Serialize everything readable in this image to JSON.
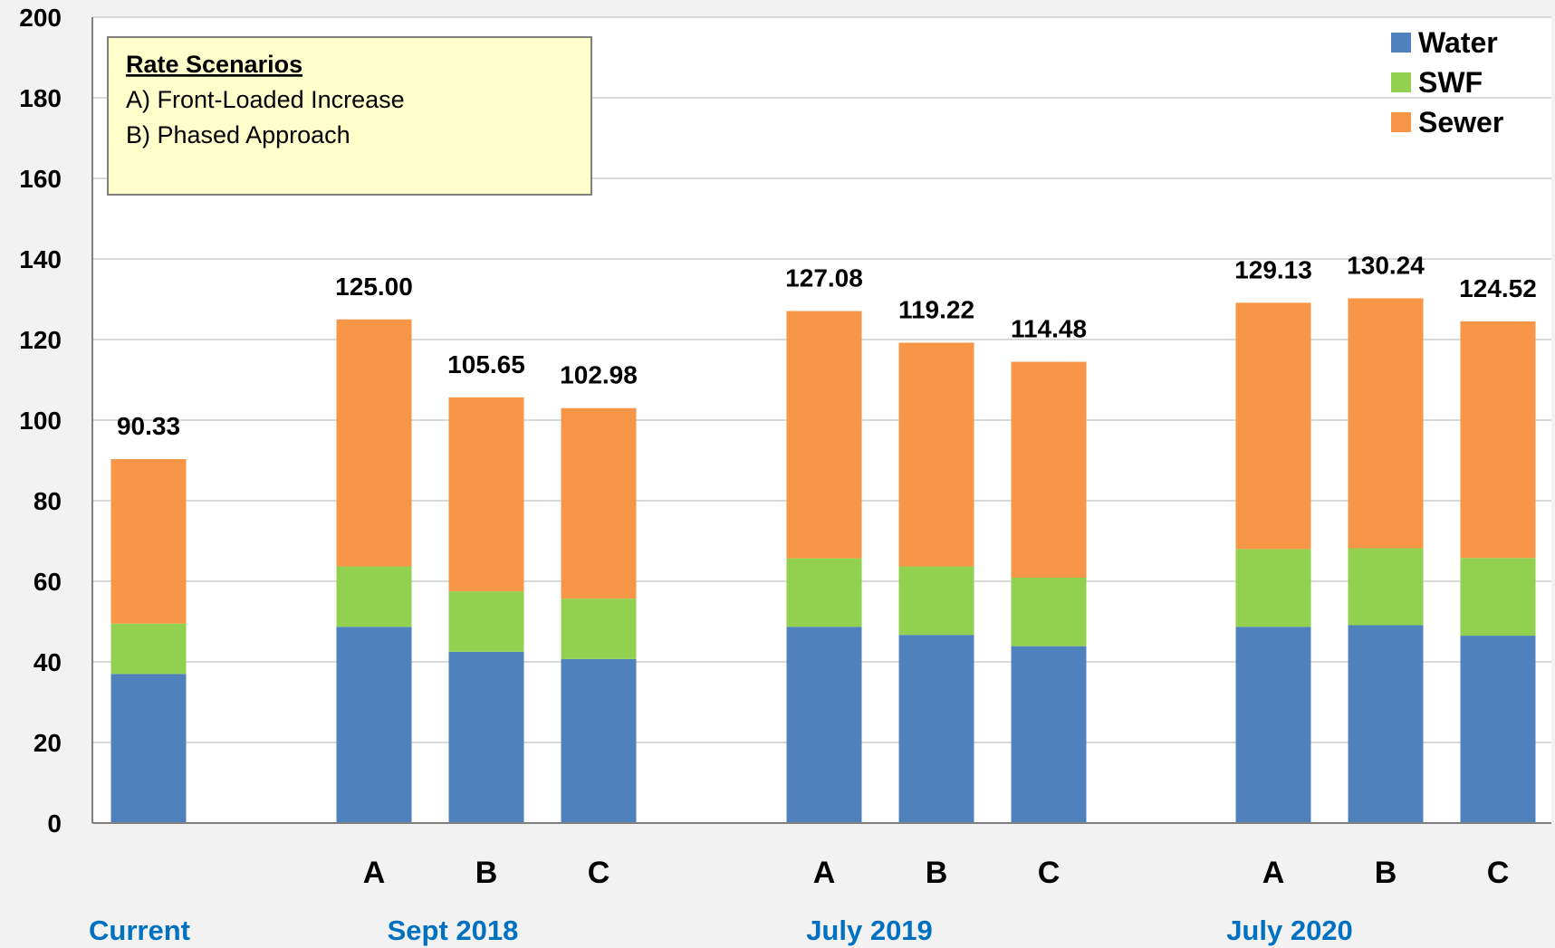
{
  "chart_data": {
    "type": "bar",
    "stacked": true,
    "ylim": [
      0,
      200
    ],
    "yticks": [
      0,
      20,
      40,
      60,
      80,
      100,
      120,
      140,
      160,
      180,
      200
    ],
    "grid": true,
    "legend_position": "top-right",
    "categories": [
      "",
      "A",
      "B",
      "C",
      "A",
      "B",
      "C",
      "A",
      "B",
      "C"
    ],
    "groups": [
      {
        "label": "Current",
        "members": [
          0
        ]
      },
      {
        "label": "Sept 2018",
        "members": [
          1,
          2,
          3
        ]
      },
      {
        "label": "July 2019",
        "members": [
          4,
          5,
          6
        ]
      },
      {
        "label": "July 2020",
        "members": [
          7,
          8,
          9
        ]
      }
    ],
    "series": [
      {
        "name": "Water",
        "color": "#4f81bd",
        "values": [
          37.0,
          48.7,
          42.5,
          40.7,
          48.7,
          46.7,
          43.9,
          48.7,
          49.1,
          46.5
        ]
      },
      {
        "name": "SWF",
        "color": "#92d050",
        "values": [
          12.5,
          15.0,
          15.0,
          15.0,
          17.0,
          17.0,
          17.0,
          19.3,
          19.1,
          19.3
        ]
      },
      {
        "name": "Sewer",
        "color": "#f79646",
        "values": [
          40.83,
          61.3,
          48.15,
          47.28,
          61.38,
          55.52,
          53.58,
          61.13,
          62.04,
          58.72
        ]
      }
    ],
    "totals": [
      "90.33",
      "125.00",
      "105.65",
      "102.98",
      "127.08",
      "119.22",
      "114.48",
      "129.13",
      "130.24",
      "124.52"
    ],
    "annotation": {
      "title": "Rate Scenarios",
      "lines": [
        "A) Front-Loaded Increase",
        "B) Phased Approach"
      ]
    }
  }
}
